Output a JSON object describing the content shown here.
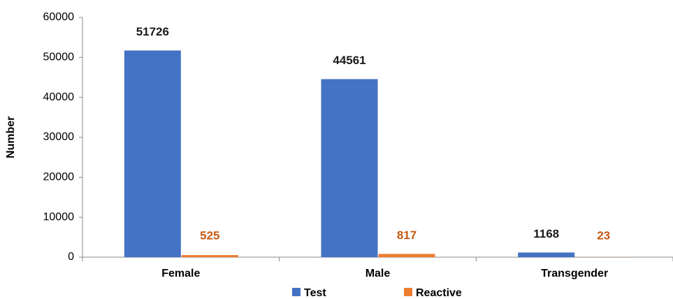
{
  "chart_data": {
    "type": "bar",
    "y_label": "Number",
    "categories": [
      "Female",
      "Male",
      "Transgender"
    ],
    "series": [
      {
        "name": "Test",
        "color": "#4472c4",
        "values": [
          51726,
          44561,
          1168
        ]
      },
      {
        "name": "Reactive",
        "color": "#ed7d31",
        "values": [
          525,
          817,
          23
        ]
      }
    ],
    "ylim": [
      0,
      60000
    ],
    "yticks": [
      0,
      10000,
      20000,
      30000,
      40000,
      50000,
      60000
    ],
    "grid": false,
    "legend": "bottom"
  }
}
